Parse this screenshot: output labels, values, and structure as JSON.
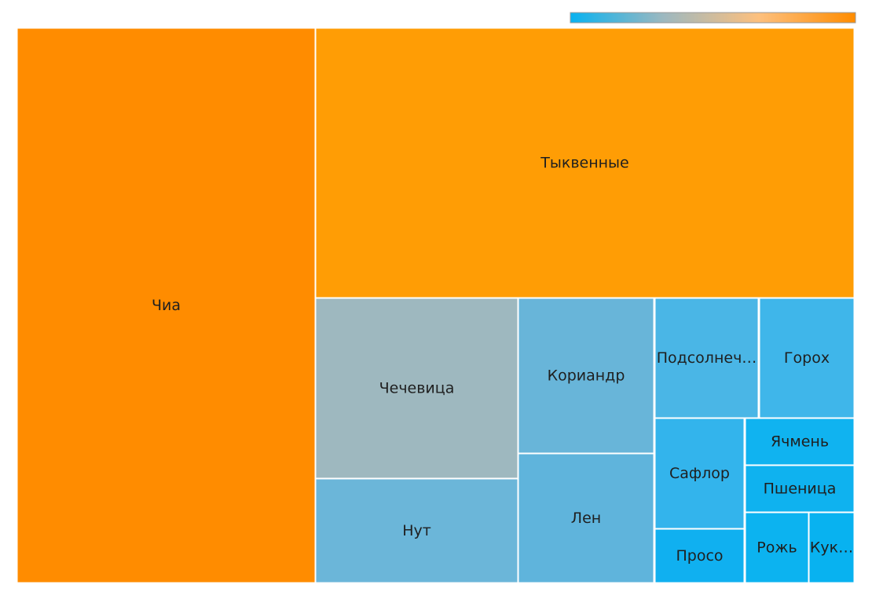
{
  "chart_data": {
    "type": "treemap",
    "title": "",
    "color_scale": {
      "colors": [
        "#08b2f0",
        "#9eb8bf",
        "#fdc07e",
        "#ff8c00"
      ]
    },
    "items": [
      {
        "label": "Чиа",
        "display_label": "Чиа",
        "value": 1.0,
        "color": "#ff8c00"
      },
      {
        "label": "Тыквенные",
        "display_label": "Тыквенные",
        "value": 1.37,
        "color": "#ff9d05"
      },
      {
        "label": "Чечевица",
        "display_label": "Чечевица",
        "value": 0.305,
        "color": "#9eb8bf"
      },
      {
        "label": "Нут",
        "display_label": "Нут",
        "value": 0.175,
        "color": "#6bb6d9"
      },
      {
        "label": "Кориандр",
        "display_label": "Кориандр",
        "value": 0.191,
        "color": "#68b5d9"
      },
      {
        "label": "Лен",
        "display_label": "Лен",
        "value": 0.163,
        "color": "#5fb4dc"
      },
      {
        "label": "Подсолнечник",
        "display_label": "Подсолнеч…",
        "value": 0.102,
        "color": "#4ab6e6"
      },
      {
        "label": "Горох",
        "display_label": "Горох",
        "value": 0.091,
        "color": "#3fb6ea"
      },
      {
        "label": "Сафлор",
        "display_label": "Сафлор",
        "value": 0.081,
        "color": "#33b4ec"
      },
      {
        "label": "Просо",
        "display_label": "Просо",
        "value": 0.047,
        "color": "#10b0f0"
      },
      {
        "label": "Ячмень",
        "display_label": "Ячмень",
        "value": 0.041,
        "color": "#10b3f0"
      },
      {
        "label": "Пшеница",
        "display_label": "Пшеница",
        "value": 0.041,
        "color": "#0fb2ef"
      },
      {
        "label": "Рожь",
        "display_label": "Рожь",
        "value": 0.038,
        "color": "#0cb3f0"
      },
      {
        "label": "Кукуруза",
        "display_label": "Кук…",
        "value": 0.026,
        "color": "#08b2f0"
      }
    ]
  }
}
